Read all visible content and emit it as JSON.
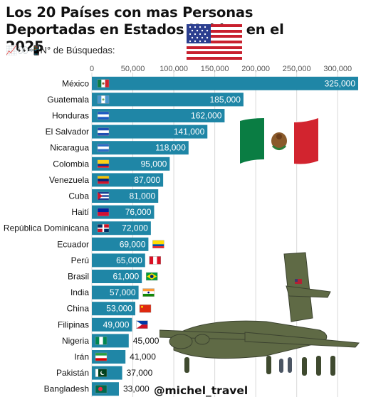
{
  "header": {
    "title": "Los 20 Países con mas Personas Deportadas en Estados Unidos en el 2025",
    "subtitle": "📈👀📲N° de Búsquedas:",
    "flag_icon": "us-flag"
  },
  "decorations": {
    "mexico_flag_icon": "mexico-flag",
    "plane_image": "military-cargo-plane-with-deportees",
    "watermark": "@michel_travel"
  },
  "colors": {
    "bar": "#1f86a6",
    "grid": "#d9d9d9",
    "value_text": "#ffffff"
  },
  "chart_data": {
    "type": "bar",
    "orientation": "horizontal",
    "title": "Los 20 Países con mas Personas Deportadas en Estados Unidos en el 2025",
    "subtitle": "📈👀📲N° de Búsquedas:",
    "xlabel": "",
    "ylabel": "",
    "xlim": [
      0,
      325000
    ],
    "xticks": [
      "0",
      "50,000",
      "100,000",
      "150,000",
      "200,000",
      "250,000",
      "300,000"
    ],
    "xtick_values": [
      0,
      50000,
      100000,
      150000,
      200000,
      250000,
      300000
    ],
    "grid": true,
    "categories": [
      "México",
      "Guatemala",
      "Honduras",
      "El Salvador",
      "Nicaragua",
      "Colombia",
      "Venezuela",
      "Cuba",
      "Haití",
      "República Dominicana",
      "Ecuador",
      "Perú",
      "Brasil",
      "India",
      "China",
      "Filipinas",
      "Nigeria",
      "Irán",
      "Pakistán",
      "Bangladesh"
    ],
    "values": [
      325000,
      185000,
      162000,
      141000,
      118000,
      95000,
      87000,
      81000,
      76000,
      72000,
      69000,
      65000,
      61000,
      57000,
      53000,
      49000,
      45000,
      41000,
      37000,
      33000
    ],
    "value_labels": [
      "325,000",
      "185,000",
      "162,000",
      "141,000",
      "118,000",
      "95,000",
      "87,000",
      "81,000",
      "76,000",
      "72,000",
      "69,000",
      "65,000",
      "61,000",
      "57,000",
      "53,000",
      "49,000",
      "45,000",
      "41,000",
      "37,000",
      "33,000"
    ],
    "flags": [
      "mx",
      "gt",
      "hn",
      "sv",
      "ni",
      "co",
      "ve",
      "cu",
      "ht",
      "do",
      "ec",
      "pe",
      "br",
      "in",
      "cn",
      "ph",
      "ng",
      "ir",
      "pk",
      "bd"
    ]
  }
}
